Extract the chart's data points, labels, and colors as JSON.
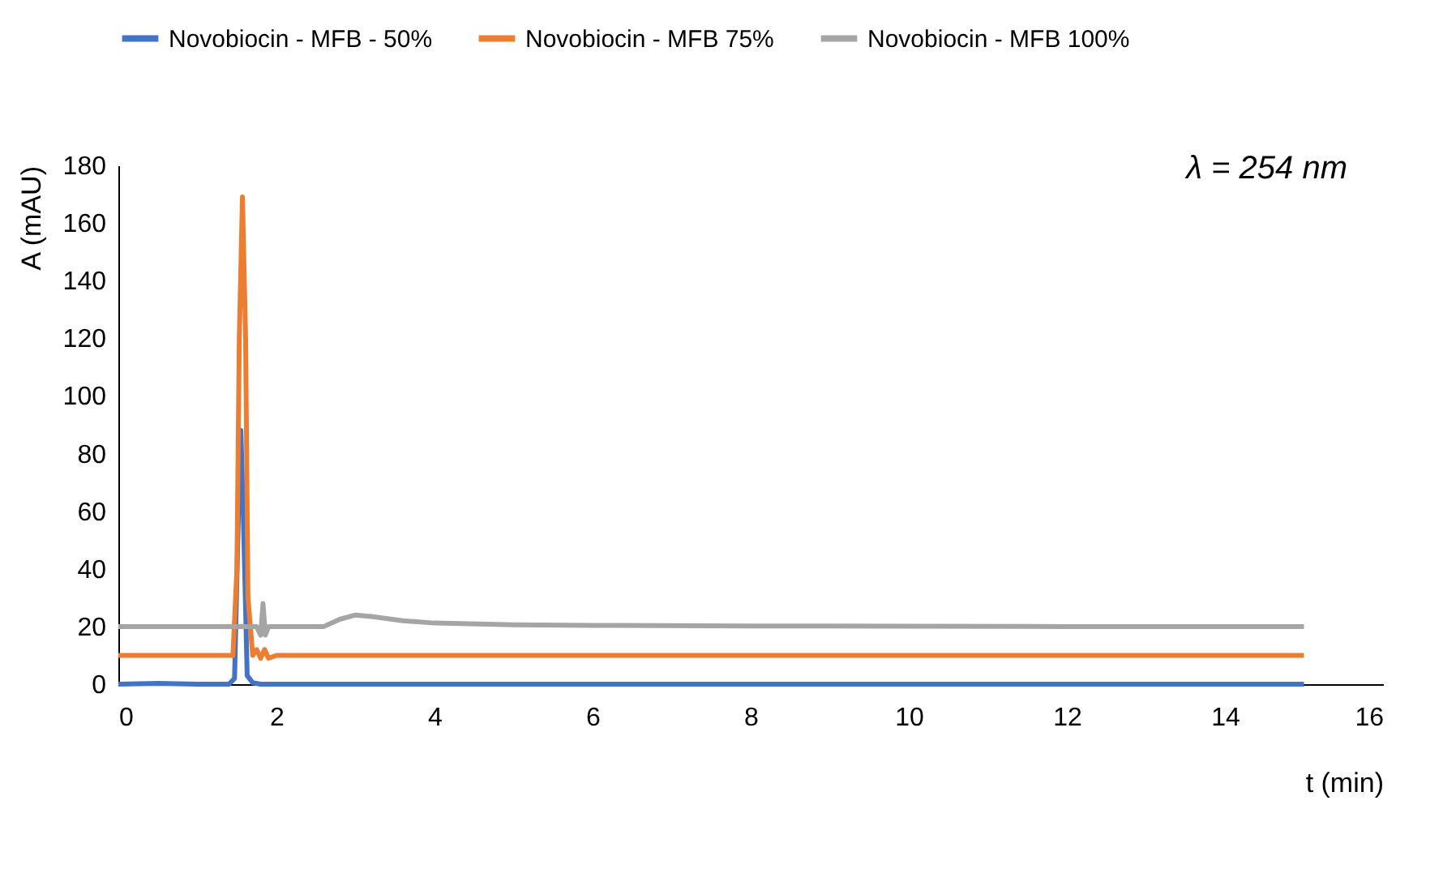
{
  "chart_data": {
    "type": "line",
    "xlabel": "t (min)",
    "ylabel": "A (mAU)",
    "annotations": [
      "λ = 254 nm"
    ],
    "xlim": [
      0,
      16
    ],
    "xticks": [
      0,
      2,
      4,
      6,
      8,
      10,
      12,
      14,
      16
    ],
    "ylim": [
      0,
      180
    ],
    "yticks": [
      0,
      20,
      40,
      60,
      80,
      100,
      120,
      140,
      160,
      180
    ],
    "grid": false,
    "legend": "top",
    "line_style": "solid",
    "marker": "none",
    "series": [
      {
        "name": "Novobiocin - MFB - 50%",
        "color": "#4472c4",
        "x": [
          0,
          0.5,
          1.0,
          1.4,
          1.47,
          1.52,
          1.55,
          1.58,
          1.63,
          1.7,
          1.8,
          2.0,
          4,
          8,
          12,
          15
        ],
        "values": [
          0,
          0.3,
          0,
          0,
          2,
          60,
          88,
          60,
          3,
          0.5,
          0,
          0,
          0,
          0,
          0,
          0
        ]
      },
      {
        "name": "Novobiocin - MFB 75%",
        "color": "#ed7d31",
        "x": [
          0,
          0.5,
          1.0,
          1.45,
          1.5,
          1.53,
          1.57,
          1.61,
          1.64,
          1.7,
          1.75,
          1.8,
          1.85,
          1.9,
          2.0,
          4,
          8,
          12,
          15
        ],
        "values": [
          10,
          10,
          10,
          10,
          40,
          120,
          169,
          120,
          30,
          10,
          12,
          9,
          12,
          9,
          10,
          10,
          10,
          10,
          10
        ]
      },
      {
        "name": "Novobiocin - MFB 100%",
        "color": "#a5a5a5",
        "x": [
          0,
          1.0,
          1.5,
          1.75,
          1.8,
          1.83,
          1.86,
          1.9,
          2.0,
          2.6,
          2.8,
          3.0,
          3.2,
          3.6,
          4.0,
          5.0,
          6,
          8,
          10,
          12,
          15
        ],
        "values": [
          20,
          20,
          20,
          20,
          17,
          28,
          17,
          20,
          20,
          20,
          22.5,
          24,
          23.5,
          22,
          21.2,
          20.6,
          20.4,
          20.2,
          20.1,
          20,
          20
        ]
      }
    ]
  }
}
